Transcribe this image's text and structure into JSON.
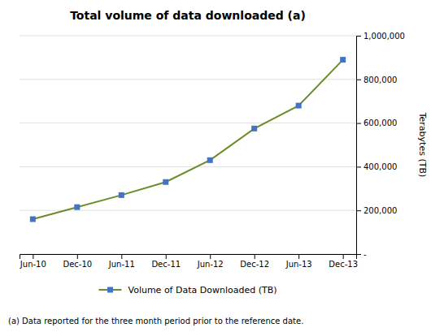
{
  "chart_data": {
    "type": "line",
    "title": "Total volume of data downloaded (a)",
    "ylabel": "Terabytes (TB)",
    "footnote": "(a) Data reported for the three month period prior to the reference date.",
    "categories": [
      "Jun-10",
      "Dec-10",
      "Jun-11",
      "Dec-11",
      "Jun-12",
      "Dec-12",
      "Jun-13",
      "Dec-13"
    ],
    "series": [
      {
        "name": "Volume of Data Downloaded (TB)",
        "color": "#6b8c2a",
        "colors": [
          "#4472c4",
          "#4472c4",
          "#4472c4",
          "#4472c4",
          "#4472c4",
          "#4472c4",
          "#4472c4",
          "#4472c4"
        ],
        "marker": "square",
        "values": [
          160000,
          215000,
          270000,
          330000,
          430000,
          575000,
          680000,
          890000
        ]
      }
    ],
    "ylim": [
      0,
      1000000
    ],
    "yticks": [
      {
        "value": 0,
        "label": "-"
      },
      {
        "value": 200000,
        "label": "200,000"
      },
      {
        "value": 400000,
        "label": "400,000"
      },
      {
        "value": 600000,
        "label": "600,000"
      },
      {
        "value": 800000,
        "label": "800,000"
      },
      {
        "value": 1000000,
        "label": "1,000,000"
      }
    ],
    "grid": true,
    "legend": "bottom"
  }
}
